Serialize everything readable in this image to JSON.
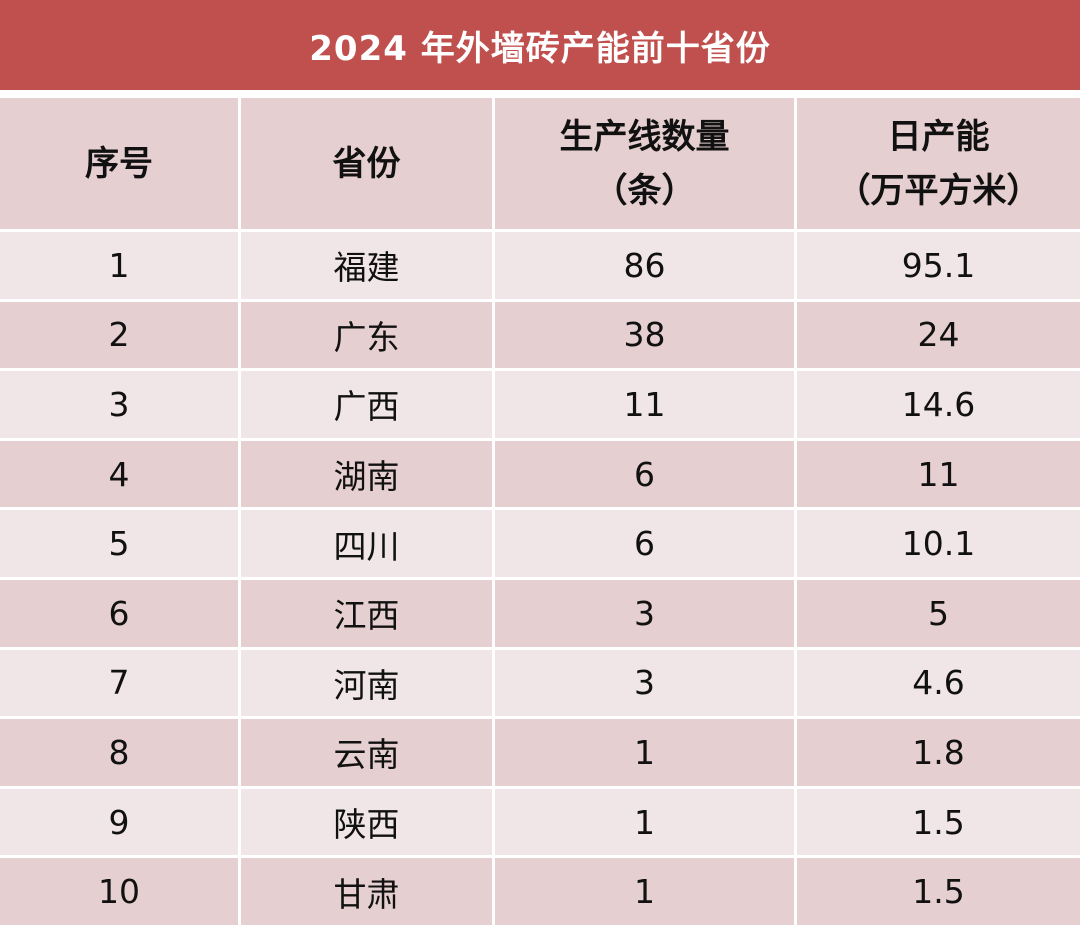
{
  "title": "2024 年外墙砖产能前十省份",
  "colors": {
    "title_bg": "#c0504d",
    "header_bg": "#e6cfd0",
    "row_light": "#f1e6e7",
    "row_dark": "#e6cfd0",
    "text": "#111111"
  },
  "headers": {
    "index": "序号",
    "province": "省份",
    "lines_line1": "生产线数量",
    "lines_line2": "（条）",
    "capacity_line1": "日产能",
    "capacity_line2": "（万平方米）"
  },
  "rows": [
    {
      "index": "1",
      "province": "福建",
      "lines": "86",
      "capacity": "95.1"
    },
    {
      "index": "2",
      "province": "广东",
      "lines": "38",
      "capacity": "24"
    },
    {
      "index": "3",
      "province": "广西",
      "lines": "11",
      "capacity": "14.6"
    },
    {
      "index": "4",
      "province": "湖南",
      "lines": "6",
      "capacity": "11"
    },
    {
      "index": "5",
      "province": "四川",
      "lines": "6",
      "capacity": "10.1"
    },
    {
      "index": "6",
      "province": "江西",
      "lines": "3",
      "capacity": "5"
    },
    {
      "index": "7",
      "province": "河南",
      "lines": "3",
      "capacity": "4.6"
    },
    {
      "index": "8",
      "province": "云南",
      "lines": "1",
      "capacity": "1.8"
    },
    {
      "index": "9",
      "province": "陕西",
      "lines": "1",
      "capacity": "1.5"
    },
    {
      "index": "10",
      "province": "甘肃",
      "lines": "1",
      "capacity": "1.5"
    }
  ]
}
